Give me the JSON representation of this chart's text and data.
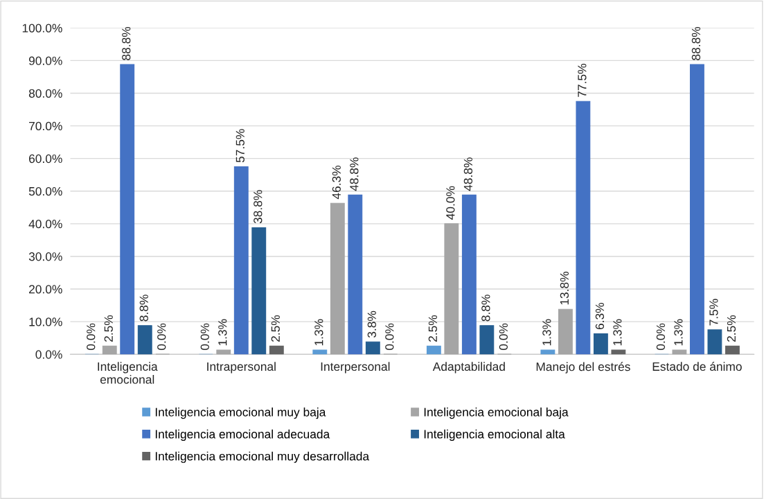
{
  "chart_data": {
    "type": "bar",
    "categories": [
      "Inteligencia\nemocional",
      "Intrapersonal",
      "Interpersonal",
      "Adaptabilidad",
      "Manejo del estrés",
      "Estado de ánimo"
    ],
    "series": [
      {
        "name": "Inteligencia emocional muy baja",
        "color": "#5b9bd5",
        "values": [
          0.0,
          0.0,
          1.3,
          2.5,
          1.3,
          0.0
        ],
        "value_labels": [
          "0.0%",
          "0.0%",
          "1.3%",
          "2.5%",
          "1.3%",
          "0.0%"
        ]
      },
      {
        "name": "Inteligencia emocional baja",
        "color": "#a5a5a5",
        "values": [
          2.5,
          1.3,
          46.3,
          40.0,
          13.8,
          1.3
        ],
        "value_labels": [
          "2.5%",
          "1.3%",
          "46.3%",
          "40.0%",
          "13.8%",
          "1.3%"
        ]
      },
      {
        "name": "Inteligencia emocional adecuada",
        "color": "#4472c4",
        "values": [
          88.8,
          57.5,
          48.8,
          48.8,
          77.5,
          88.8
        ],
        "value_labels": [
          "88.8%",
          "57.5%",
          "48.8%",
          "48.8%",
          "77.5%",
          "88.8%"
        ]
      },
      {
        "name": "Inteligencia emocional alta",
        "color": "#255e91",
        "values": [
          8.8,
          38.8,
          3.8,
          8.8,
          6.3,
          7.5
        ],
        "value_labels": [
          "8.8%",
          "38.8%",
          "3.8%",
          "8.8%",
          "6.3%",
          "7.5%"
        ]
      },
      {
        "name": "Inteligencia emocional muy desarrollada",
        "color": "#636363",
        "values": [
          0.0,
          2.5,
          0.0,
          0.0,
          1.3,
          2.5
        ],
        "value_labels": [
          "0.0%",
          "2.5%",
          "0.0%",
          "0.0%",
          "1.3%",
          "2.5%"
        ]
      }
    ],
    "ylim": [
      0,
      100
    ],
    "yticks": [
      {
        "value": 0,
        "label": "0.0%"
      },
      {
        "value": 10,
        "label": "10.0%"
      },
      {
        "value": 20,
        "label": "20.0%"
      },
      {
        "value": 30,
        "label": "30.0%"
      },
      {
        "value": 40,
        "label": "40.0%"
      },
      {
        "value": 50,
        "label": "50.0%"
      },
      {
        "value": 60,
        "label": "60.0%"
      },
      {
        "value": 70,
        "label": "70.0%"
      },
      {
        "value": 80,
        "label": "80.0%"
      },
      {
        "value": 90,
        "label": "90.0%"
      },
      {
        "value": 100,
        "label": "100.0%"
      }
    ],
    "grid": "y",
    "legend": "bottom"
  }
}
